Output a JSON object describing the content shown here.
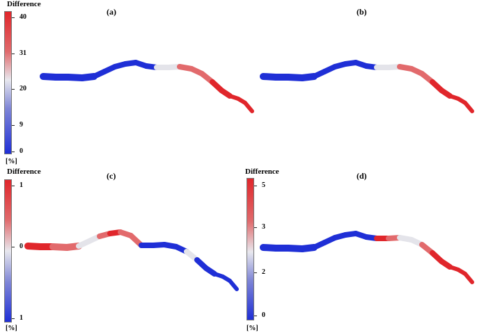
{
  "panels": [
    {
      "label": "(a)",
      "colorbar": {
        "title": "Difference",
        "unit": "[%]",
        "ticks": [
          "40",
          "31",
          "20",
          "9",
          "0"
        ]
      },
      "map": [
        "blue",
        "blue",
        "blue",
        "blue",
        "blue",
        "blue",
        "blue",
        "white",
        "white",
        "lightred",
        "lightred",
        "red",
        "red",
        "red",
        "red"
      ]
    },
    {
      "label": "(b)",
      "colorbar": null,
      "map": [
        "blue",
        "blue",
        "blue",
        "blue",
        "blue",
        "blue",
        "blue",
        "white",
        "white",
        "lightred",
        "lightred",
        "red",
        "red",
        "red",
        "red"
      ]
    },
    {
      "label": "(c)",
      "colorbar": {
        "title": "Difference",
        "unit": "[%]",
        "ticks": [
          "1",
          "0",
          "1"
        ]
      },
      "map": [
        "red",
        "lightred",
        "lightred",
        "white",
        "lightred",
        "red",
        "lightred",
        "blue",
        "blue",
        "blue",
        "white",
        "blue",
        "blue",
        "blue",
        "blue"
      ]
    },
    {
      "label": "(d)",
      "colorbar": {
        "title": "Difference",
        "unit": "[%]",
        "ticks": [
          "5",
          "3",
          "2",
          "0"
        ]
      },
      "map": [
        "blue",
        "blue",
        "blue",
        "blue",
        "blue",
        "blue",
        "blue",
        "red",
        "lightred",
        "white",
        "lightred",
        "red",
        "red",
        "red",
        "red"
      ]
    }
  ],
  "colors": {
    "red": "#e0262b",
    "lightred": "#e26a6c",
    "white": "#e4e4ea",
    "lightblue": "#7f86d6",
    "blue": "#1f2fd6"
  }
}
